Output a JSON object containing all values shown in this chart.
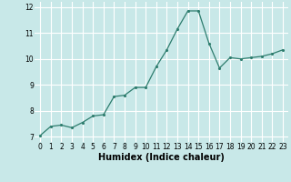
{
  "x": [
    0,
    1,
    2,
    3,
    4,
    5,
    6,
    7,
    8,
    9,
    10,
    11,
    12,
    13,
    14,
    15,
    16,
    17,
    18,
    19,
    20,
    21,
    22,
    23
  ],
  "y": [
    7.05,
    7.4,
    7.45,
    7.35,
    7.55,
    7.8,
    7.85,
    8.55,
    8.6,
    8.9,
    8.9,
    9.7,
    10.35,
    11.15,
    11.85,
    11.85,
    10.6,
    9.65,
    10.05,
    10.0,
    10.05,
    10.1,
    10.2,
    10.35
  ],
  "xlabel": "Humidex (Indice chaleur)",
  "bg_color": "#c8e8e8",
  "line_color": "#2e7d6e",
  "marker_color": "#2e7d6e",
  "grid_color": "#ffffff",
  "ylim": [
    6.8,
    12.2
  ],
  "xlim": [
    -0.5,
    23.5
  ],
  "yticks": [
    7,
    8,
    9,
    10,
    11,
    12
  ],
  "xticks": [
    0,
    1,
    2,
    3,
    4,
    5,
    6,
    7,
    8,
    9,
    10,
    11,
    12,
    13,
    14,
    15,
    16,
    17,
    18,
    19,
    20,
    21,
    22,
    23
  ],
  "tick_fontsize": 5.5,
  "xlabel_fontsize": 7,
  "linewidth": 0.9,
  "markersize": 2.5
}
